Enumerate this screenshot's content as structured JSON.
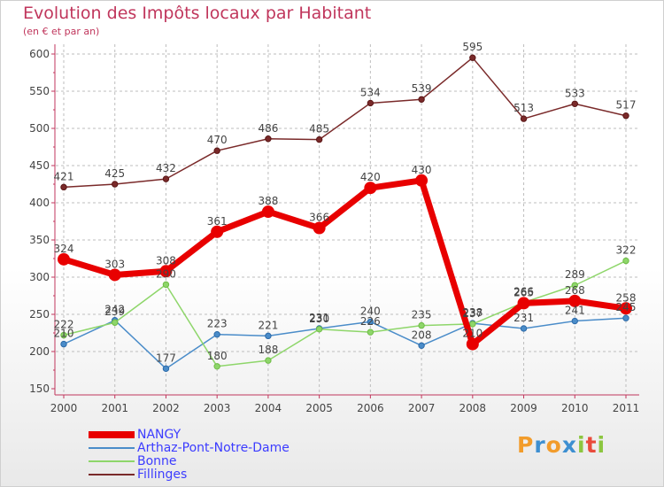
{
  "chart_data": {
    "type": "line",
    "title": "Evolution des Impôts locaux par Habitant",
    "subtitle": "(en € et par an)",
    "xlabel": "",
    "ylabel": "",
    "ylim": [
      150,
      600
    ],
    "yticks": [
      "150",
      "200",
      "250",
      "300",
      "350",
      "400",
      "450",
      "500",
      "550",
      "600"
    ],
    "categories": [
      "2000",
      "2001",
      "2002",
      "2003",
      "2004",
      "2005",
      "2006",
      "2007",
      "2008",
      "2009",
      "2010",
      "2011"
    ],
    "legend_position": "bottom-left",
    "series": [
      {
        "name": "Fillinges",
        "color": "#7a2a2a",
        "values": [
          421,
          425,
          432,
          470,
          486,
          485,
          534,
          539,
          595,
          513,
          533,
          517
        ],
        "labels": [
          "421",
          "425",
          "432",
          "470",
          "486",
          "485",
          "534",
          "539",
          "595",
          "513",
          "533",
          "517"
        ]
      },
      {
        "name": "Arthaz-Pont-Notre-Dame",
        "color": "#4a8cc9",
        "values": [
          210,
          242,
          177,
          223,
          221,
          231,
          240,
          208,
          238,
          231,
          241,
          245
        ],
        "labels": [
          "210",
          "242",
          "177",
          "223",
          "221",
          "231",
          "240",
          "208",
          "238",
          "231",
          "241",
          "245"
        ]
      },
      {
        "name": "Bonne",
        "color": "#8ed66a",
        "values": [
          222,
          239,
          290,
          180,
          188,
          230,
          226,
          235,
          237,
          266,
          289,
          322
        ],
        "labels": [
          "222",
          "239",
          "290",
          "180",
          "188",
          "230",
          "226",
          "235",
          "237",
          "266",
          "289",
          "322"
        ]
      },
      {
        "name": "NANGY",
        "color": "#e80000",
        "values": [
          324,
          303,
          308,
          361,
          388,
          366,
          420,
          430,
          210,
          265,
          268,
          258
        ],
        "labels": [
          "324",
          "303",
          "308",
          "361",
          "388",
          "366",
          "420",
          "430",
          "210",
          "265",
          "268",
          "258"
        ]
      }
    ],
    "legend": [
      "NANGY",
      "Arthaz-Pont-Notre-Dame",
      "Bonne",
      "Fillinges"
    ]
  },
  "logo": {
    "text": "Proxiti",
    "letters": [
      "P",
      "r",
      "o",
      "x",
      "i",
      "t",
      "i"
    ],
    "colors": [
      "#f29c2b",
      "#3d8fd1",
      "#f29c2b",
      "#3d8fd1",
      "#8cc63f",
      "#e94b3c",
      "#8cc63f"
    ]
  }
}
